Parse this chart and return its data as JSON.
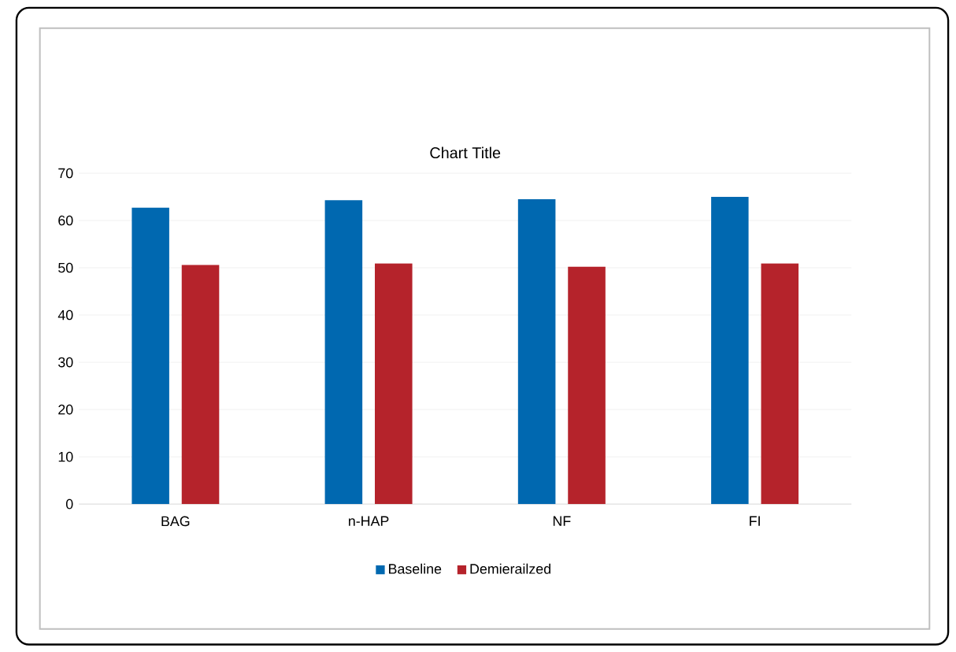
{
  "chart_data": {
    "type": "bar",
    "title": "Chart Title",
    "categories": [
      "BAG",
      "n-HAP",
      "NF",
      "FI"
    ],
    "series": [
      {
        "name": "Baseline",
        "color": "#0068b0",
        "values": [
          62.7,
          64.3,
          64.5,
          65.0
        ]
      },
      {
        "name": "Demierailzed",
        "color": "#b5232b",
        "values": [
          50.6,
          50.9,
          50.2,
          50.9
        ]
      }
    ],
    "ylim": [
      0,
      70
    ],
    "yticks": [
      0,
      10,
      20,
      30,
      40,
      50,
      60,
      70
    ],
    "grid": "y",
    "legend": "bottom"
  }
}
